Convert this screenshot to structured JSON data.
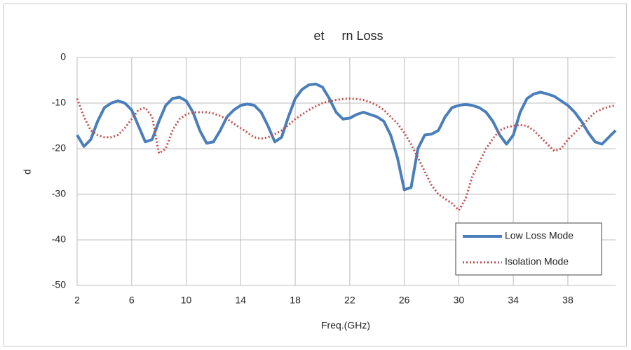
{
  "chart_data": {
    "type": "line",
    "title": "et     rn Loss",
    "x_label": "Freq.(GHz)",
    "y_label": "d",
    "x": [
      2,
      2.5,
      3,
      3.5,
      4,
      4.5,
      5,
      5.5,
      6,
      6.5,
      7,
      7.5,
      8,
      8.5,
      9,
      9.5,
      10,
      10.5,
      11,
      11.5,
      12,
      12.5,
      13,
      13.5,
      14,
      14.5,
      15,
      15.5,
      16,
      16.5,
      17,
      17.5,
      18,
      18.5,
      19,
      19.5,
      20,
      20.5,
      21,
      21.5,
      22,
      22.5,
      23,
      23.5,
      24,
      24.5,
      25,
      25.5,
      26,
      26.5,
      27,
      27.5,
      28,
      28.5,
      29,
      29.5,
      30,
      30.5,
      31,
      31.5,
      32,
      32.5,
      33,
      33.5,
      34,
      34.5,
      35,
      35.5,
      36,
      36.5,
      37,
      37.5,
      38,
      38.5,
      39,
      39.5,
      40,
      40.5,
      41,
      41.5
    ],
    "series": [
      {
        "name": "Low Loss Mode",
        "color": "#4a7ebb",
        "dash": false,
        "values": [
          -17,
          -19.5,
          -18,
          -14,
          -11,
          -10,
          -9.5,
          -10,
          -11.5,
          -15,
          -18.5,
          -18,
          -14,
          -10.5,
          -9,
          -8.7,
          -9.5,
          -12,
          -16,
          -18.8,
          -18.5,
          -16,
          -13,
          -11.5,
          -10.5,
          -10.2,
          -10.5,
          -12,
          -15,
          -18.5,
          -17.5,
          -13,
          -9,
          -7,
          -6,
          -5.8,
          -6.5,
          -9,
          -12,
          -13.5,
          -13.3,
          -12.5,
          -12,
          -12.5,
          -13,
          -14,
          -17,
          -22,
          -29,
          -28.5,
          -20,
          -17,
          -16.8,
          -16,
          -13,
          -11,
          -10.5,
          -10.3,
          -10.5,
          -11,
          -12,
          -14,
          -17,
          -19,
          -17,
          -12,
          -9,
          -8,
          -7.6,
          -8,
          -8.5,
          -9.5,
          -10.5,
          -12,
          -14,
          -16.5,
          -18.5,
          -19,
          -17.5,
          -16
        ]
      },
      {
        "name": "Isolation Mode",
        "color": "#c0504d",
        "dash": true,
        "values": [
          -9,
          -13,
          -16,
          -17,
          -17.5,
          -17.5,
          -17,
          -15.5,
          -13.5,
          -11.5,
          -11,
          -13,
          -21,
          -20,
          -16,
          -13.5,
          -12.5,
          -12,
          -12,
          -12,
          -12.3,
          -12.8,
          -13.5,
          -14.5,
          -15.5,
          -16.5,
          -17.5,
          -17.8,
          -17.5,
          -16.8,
          -16,
          -14.8,
          -13.5,
          -12.5,
          -11.5,
          -10.7,
          -10,
          -9.6,
          -9.3,
          -9.1,
          -9,
          -9.1,
          -9.3,
          -9.8,
          -10.5,
          -11.5,
          -13,
          -14.5,
          -16.5,
          -19,
          -22,
          -25,
          -28,
          -30,
          -31,
          -32,
          -33.5,
          -31,
          -26,
          -23,
          -20,
          -17.8,
          -16,
          -15.3,
          -15,
          -14.8,
          -15,
          -16,
          -17.5,
          -19,
          -20.5,
          -20,
          -18,
          -16.5,
          -15,
          -13.5,
          -12,
          -11.3,
          -10.8,
          -10.5
        ]
      }
    ],
    "xlim": [
      2,
      41.5
    ],
    "xticks": [
      2,
      6,
      10,
      14,
      18,
      22,
      26,
      30,
      34,
      38
    ],
    "ylim": [
      -50,
      0
    ],
    "yticks": [
      0,
      -10,
      -20,
      -30,
      -40,
      -50
    ],
    "grid": true,
    "legend": "lower right"
  }
}
